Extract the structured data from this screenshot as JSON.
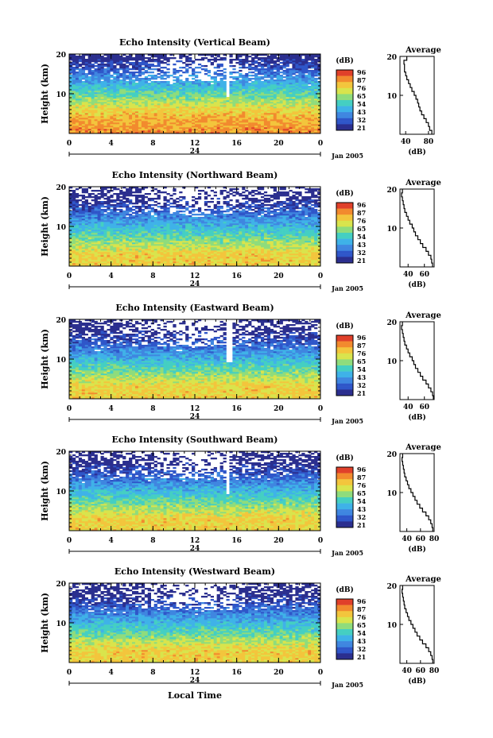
{
  "chart_data": [
    {
      "type": "heatmap",
      "title": "Echo Intensity (Vertical Beam)",
      "ylabel": "Height (km)",
      "y_ticks": [
        "20",
        "10"
      ],
      "x_ticks": [
        "0",
        "4",
        "8",
        "12",
        "16",
        "20",
        "0"
      ],
      "day_label": "24",
      "date_label": "Jan 2005",
      "colorbar": {
        "unit": "(dB)",
        "ticks": [
          "96",
          "87",
          "76",
          "65",
          "54",
          "43",
          "32",
          "21"
        ]
      },
      "ylim": [
        0,
        20
      ],
      "xlim": [
        0,
        24
      ],
      "gap_at_hour": 15.2,
      "average": {
        "title": "Average",
        "xlabel": "(dB)",
        "x_ticks": [
          "40",
          "80"
        ],
        "y_ticks": [
          "20",
          "10"
        ],
        "xlim": [
          30,
          90
        ],
        "profile_db": [
          86,
          82,
          80,
          76,
          72,
          68,
          65,
          63,
          61,
          58,
          55,
          51,
          48,
          45,
          42,
          40,
          38,
          38,
          37,
          42
        ]
      }
    },
    {
      "type": "heatmap",
      "title": "Echo Intensity (Northward Beam)",
      "ylabel": "Height (km)",
      "y_ticks": [
        "20",
        "10"
      ],
      "x_ticks": [
        "0",
        "4",
        "8",
        "12",
        "16",
        "20",
        "0"
      ],
      "day_label": "24",
      "date_label": "Jan 2005",
      "colorbar": {
        "unit": "(dB)",
        "ticks": [
          "96",
          "87",
          "76",
          "65",
          "54",
          "43",
          "32",
          "21"
        ]
      },
      "ylim": [
        0,
        20
      ],
      "xlim": [
        0,
        24
      ],
      "average": {
        "title": "Average",
        "xlabel": "(dB)",
        "x_ticks": [
          "40",
          "60"
        ],
        "y_ticks": [
          "20",
          "10"
        ],
        "xlim": [
          30,
          72
        ],
        "profile_db": [
          70,
          69,
          68,
          65,
          62,
          58,
          55,
          52,
          49,
          47,
          45,
          42,
          40,
          38,
          36,
          35,
          34,
          33,
          32,
          33
        ]
      }
    },
    {
      "type": "heatmap",
      "title": "Echo Intensity (Eastward Beam)",
      "ylabel": "Height (km)",
      "y_ticks": [
        "20",
        "10"
      ],
      "x_ticks": [
        "0",
        "4",
        "8",
        "12",
        "16",
        "20",
        "0"
      ],
      "day_label": "24",
      "date_label": "Jan 2005",
      "colorbar": {
        "unit": "(dB)",
        "ticks": [
          "96",
          "87",
          "76",
          "65",
          "54",
          "43",
          "32",
          "21"
        ]
      },
      "ylim": [
        0,
        20
      ],
      "xlim": [
        0,
        24
      ],
      "gap_at_hour": 15.3,
      "average": {
        "title": "Average",
        "xlabel": "(dB)",
        "x_ticks": [
          "40",
          "60"
        ],
        "y_ticks": [
          "20",
          "10"
        ],
        "xlim": [
          30,
          72
        ],
        "profile_db": [
          71,
          70,
          68,
          65,
          62,
          58,
          55,
          52,
          49,
          47,
          45,
          42,
          40,
          38,
          36,
          35,
          34,
          33,
          32,
          33
        ]
      }
    },
    {
      "type": "heatmap",
      "title": "Echo Intensity (Southward Beam)",
      "ylabel": "Height (km)",
      "y_ticks": [
        "20",
        "10"
      ],
      "x_ticks": [
        "0",
        "4",
        "8",
        "12",
        "16",
        "20",
        "0"
      ],
      "day_label": "24",
      "date_label": "Jan 2005",
      "colorbar": {
        "unit": "(dB)",
        "ticks": [
          "96",
          "87",
          "76",
          "65",
          "54",
          "43",
          "32",
          "21"
        ]
      },
      "ylim": [
        0,
        20
      ],
      "xlim": [
        0,
        24
      ],
      "gap_at_hour": 15.2,
      "average": {
        "title": "Average",
        "xlabel": "(dB)",
        "x_ticks": [
          "40",
          "60",
          "80"
        ],
        "y_ticks": [
          "20",
          "10"
        ],
        "xlim": [
          30,
          80
        ],
        "profile_db": [
          78,
          77,
          75,
          72,
          68,
          63,
          59,
          55,
          52,
          49,
          46,
          43,
          41,
          39,
          37,
          36,
          35,
          34,
          33,
          34
        ]
      }
    },
    {
      "type": "heatmap",
      "title": "Echo Intensity (Westward Beam)",
      "ylabel": "Height (km)",
      "y_ticks": [
        "20",
        "10"
      ],
      "x_ticks": [
        "0",
        "4",
        "8",
        "12",
        "16",
        "20",
        "0"
      ],
      "day_label": "24",
      "date_label": "Jan 2005",
      "colorbar": {
        "unit": "(dB)",
        "ticks": [
          "96",
          "87",
          "76",
          "65",
          "54",
          "43",
          "32",
          "21"
        ]
      },
      "ylim": [
        0,
        20
      ],
      "xlim": [
        0,
        24
      ],
      "average": {
        "title": "Average",
        "xlabel": "(dB)",
        "x_ticks": [
          "40",
          "60",
          "80"
        ],
        "y_ticks": [
          "20",
          "10"
        ],
        "xlim": [
          30,
          80
        ],
        "profile_db": [
          78,
          77,
          75,
          72,
          68,
          63,
          59,
          55,
          52,
          49,
          46,
          43,
          41,
          39,
          37,
          36,
          35,
          34,
          33,
          34
        ]
      }
    }
  ],
  "footer": {
    "xlabel": "Local Time"
  },
  "colormap": [
    "#2b2f8f",
    "#2f56c9",
    "#3f86e0",
    "#3fb2e8",
    "#45cfc2",
    "#8fdc7c",
    "#d9e44c",
    "#f3c53c",
    "#f28a2e",
    "#e0402a"
  ]
}
